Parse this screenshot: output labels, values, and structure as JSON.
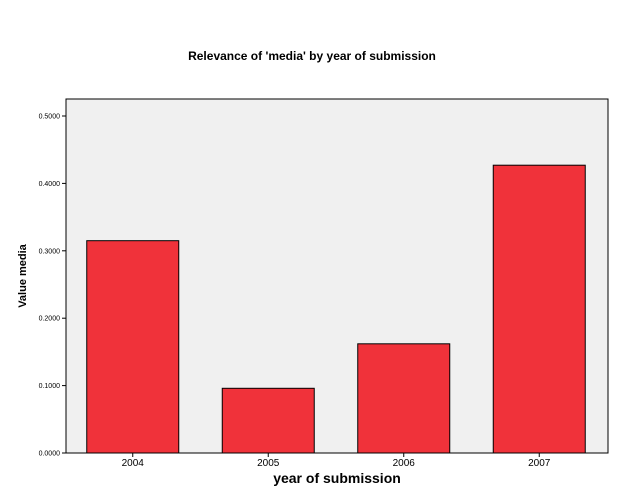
{
  "chart_data": {
    "type": "bar",
    "title": "Relevance of 'media' by year of submission",
    "xlabel": "year of submission",
    "ylabel": "Value media",
    "categories": [
      "2004",
      "2005",
      "2006",
      "2007"
    ],
    "values": [
      0.315,
      0.096,
      0.162,
      0.427
    ],
    "ylim": [
      0,
      0.5
    ],
    "y_ticks": [
      "0.0000",
      "0.1000",
      "0.2000",
      "0.3000",
      "0.4000",
      "0.5000"
    ],
    "grid": false,
    "legend": "none",
    "colors": {
      "bar_fill": "#f0323a",
      "bar_stroke": "#000000",
      "plot_background": "#f0f0f0",
      "plot_border": "#000000"
    }
  }
}
